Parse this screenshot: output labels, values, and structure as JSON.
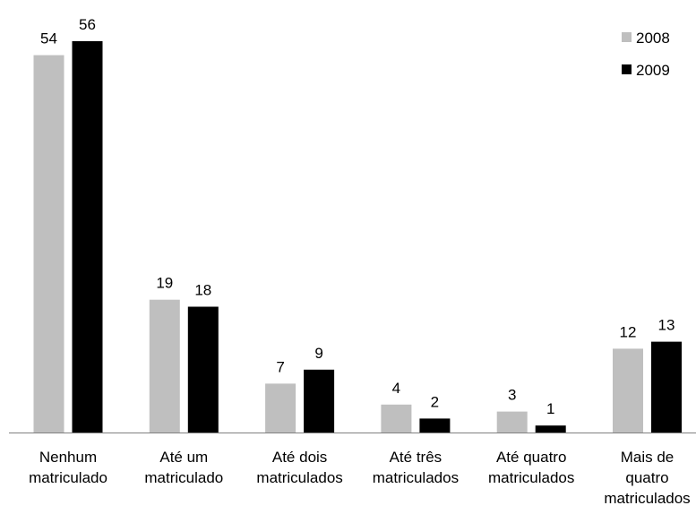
{
  "chart_data": {
    "type": "bar",
    "title": "",
    "xlabel": "",
    "ylabel": "",
    "categories": [
      [
        "Nenhum",
        "matriculado"
      ],
      [
        "Até um",
        "matriculado"
      ],
      [
        "Até dois",
        "matriculados"
      ],
      [
        "Até três",
        "matriculados"
      ],
      [
        "Até quatro",
        "matriculados"
      ],
      [
        "Mais de",
        "quatro",
        "matriculados"
      ]
    ],
    "series": [
      {
        "name": "2008",
        "values": [
          54,
          19,
          7,
          4,
          3,
          12
        ],
        "color": "#bfbfbf"
      },
      {
        "name": "2009",
        "values": [
          56,
          18,
          9,
          2,
          1,
          13
        ],
        "color": "#000000"
      }
    ],
    "ylim": [
      0,
      56
    ],
    "grid": false,
    "legend_position": "top-right",
    "axis_color": "#808080"
  }
}
